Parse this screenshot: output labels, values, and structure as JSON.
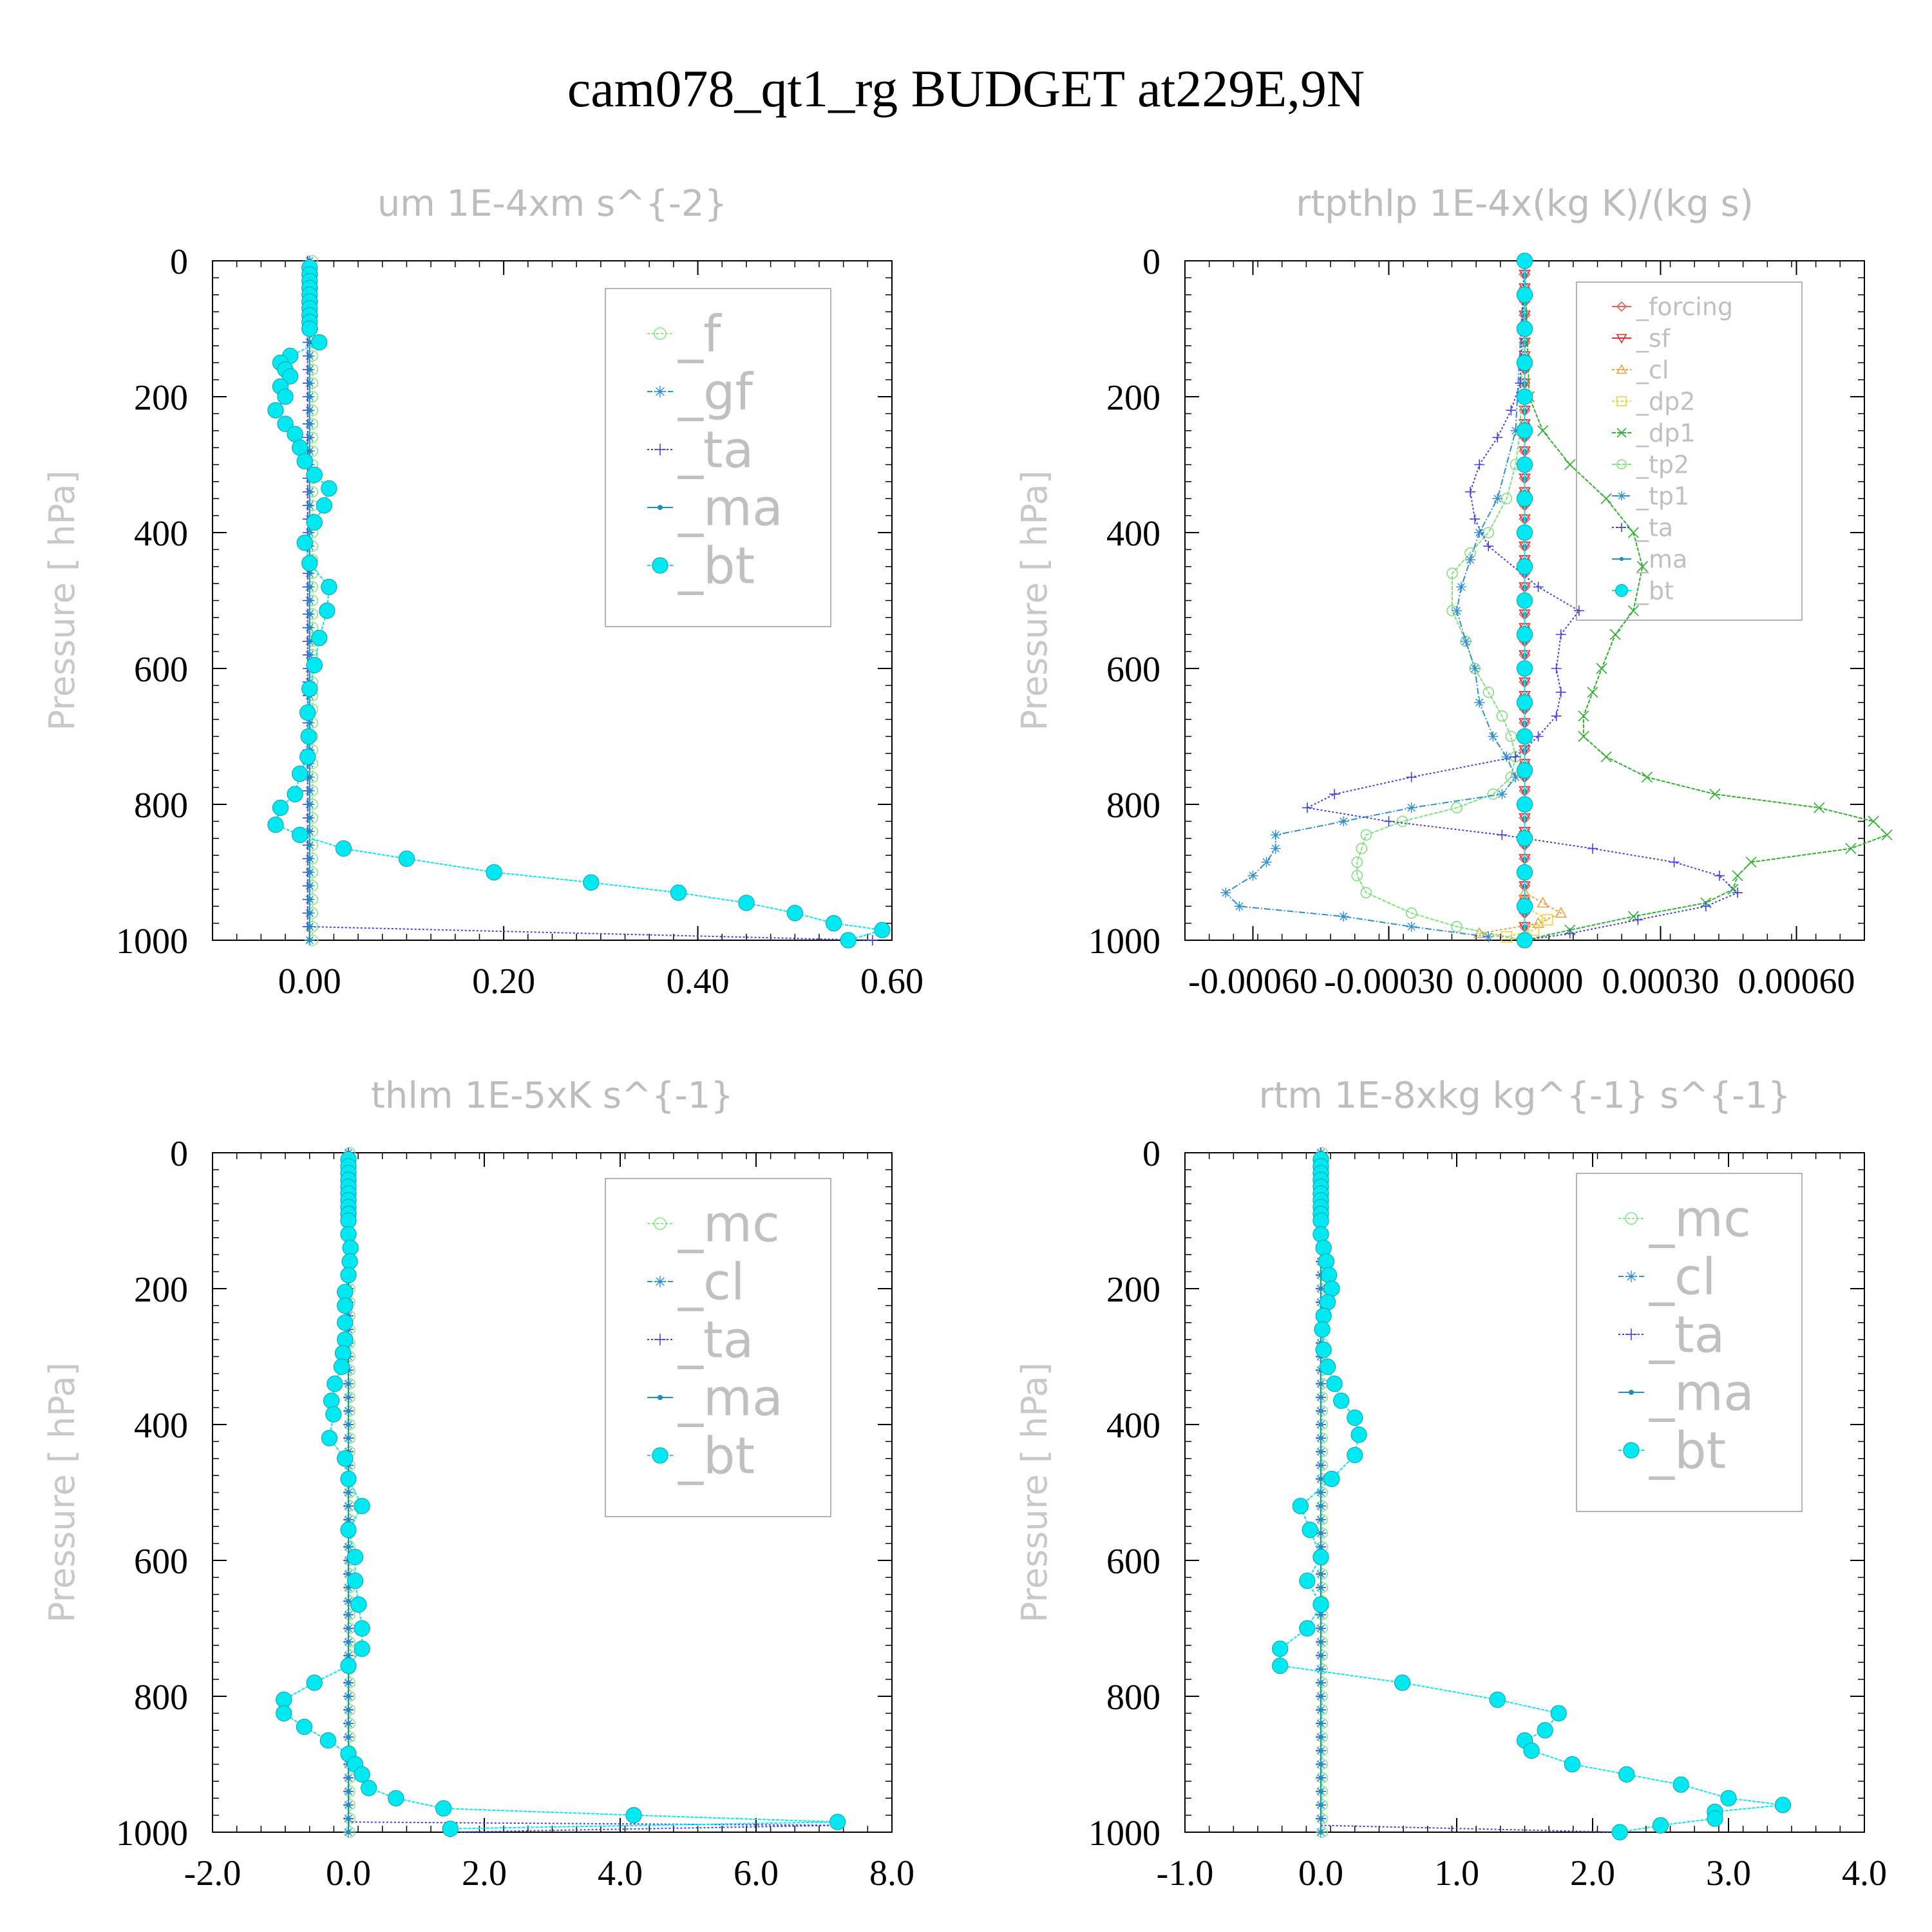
{
  "title": "cam078_qt1_rg  BUDGET at229E,9N",
  "chart_data": [
    {
      "type": "line",
      "title": "um  1E-4xm s^{-2}",
      "ylabel": "Pressure [ hPa]",
      "xlim": [
        -0.1,
        0.6
      ],
      "ylim": [
        1000,
        0
      ],
      "xticks": [
        "0.00",
        "0.20",
        "0.40",
        "0.60"
      ],
      "xtick_values": [
        0,
        0.2,
        0.4,
        0.6
      ],
      "yticks": [
        "0",
        "200",
        "400",
        "600",
        "800",
        "1000"
      ],
      "legend": "top-right",
      "series": [
        {
          "name": "_f",
          "color": "#88e888",
          "marker": "circle",
          "dash": "4 3",
          "p": [
            0,
            1000
          ],
          "x": [
            0.003,
            0.003
          ]
        },
        {
          "name": "_gf",
          "color": "#2f8fd0",
          "marker": "star",
          "dash": "8 3 2 3",
          "p": [
            0,
            1000
          ],
          "x": [
            0.0,
            0.0
          ]
        },
        {
          "name": "_ta",
          "color": "#4040e0",
          "marker": "plus",
          "dash": "3 3",
          "p": [
            0,
            980,
            1000
          ],
          "x": [
            -0.002,
            -0.002,
            0.58
          ]
        },
        {
          "name": "_ma",
          "color": "#1e90c0",
          "marker": "dot",
          "dash": "",
          "p": [
            0,
            1000
          ],
          "x": [
            0.0,
            0.0
          ]
        },
        {
          "name": "_bt",
          "color": "#00e8f0",
          "marker": "bigdot",
          "dash": "5 2",
          "p": [
            10,
            20,
            30,
            40,
            50,
            60,
            70,
            80,
            90,
            100,
            120,
            140,
            150,
            160,
            170,
            185,
            200,
            220,
            240,
            255,
            275,
            295,
            315,
            335,
            360,
            385,
            415,
            445,
            480,
            515,
            555,
            595,
            630,
            665,
            700,
            730,
            755,
            785,
            805,
            830,
            845,
            865,
            880,
            900,
            915,
            930,
            945,
            960,
            975,
            985,
            1000
          ],
          "x": [
            0,
            0,
            0,
            0,
            0,
            0,
            0,
            0,
            0,
            0,
            0.01,
            -0.02,
            -0.03,
            -0.025,
            -0.02,
            -0.03,
            -0.025,
            -0.035,
            -0.025,
            -0.015,
            -0.01,
            -0.005,
            0.005,
            0.02,
            0.015,
            0.005,
            -0.005,
            0,
            0.02,
            0.018,
            0.01,
            0.005,
            0,
            -0.002,
            -0.001,
            -0.002,
            -0.01,
            -0.015,
            -0.03,
            -0.035,
            -0.01,
            0.035,
            0.1,
            0.19,
            0.29,
            0.38,
            0.45,
            0.5,
            0.54,
            0.59,
            0.555
          ]
        }
      ]
    },
    {
      "type": "line",
      "title": "rtpthlp  1E-4x(kg K)/(kg s)",
      "ylabel": "Pressure [ hPa]",
      "xlim": [
        -0.00075,
        0.00075
      ],
      "ylim": [
        1000,
        0
      ],
      "xticks": [
        "-0.00060",
        "-0.00030",
        "0.00000",
        "0.00030",
        "0.00060"
      ],
      "xtick_values": [
        -0.0006,
        -0.0003,
        0,
        0.0003,
        0.0006
      ],
      "yticks": [
        "0",
        "200",
        "400",
        "600",
        "800",
        "1000"
      ],
      "legend": "top-right",
      "series": [
        {
          "name": "_forcing",
          "color": "#e06060",
          "marker": "diamond",
          "dash": "",
          "p": [
            0,
            1000
          ],
          "x": [
            0,
            0
          ]
        },
        {
          "name": "_sf",
          "color": "#e03030",
          "marker": "tridown",
          "dash": "",
          "p": [
            0,
            1000
          ],
          "x": [
            0,
            0
          ]
        },
        {
          "name": "_cl",
          "color": "#f0a040",
          "marker": "triup",
          "dash": "4 3",
          "p": [
            0,
            930,
            945,
            960,
            975,
            990,
            1000
          ],
          "x": [
            0,
            0,
            4e-05,
            8e-05,
            3e-05,
            -0.0001,
            0
          ]
        },
        {
          "name": "_dp2",
          "color": "#f0d040",
          "marker": "square",
          "dash": "4 3",
          "p": [
            0,
            950,
            970,
            985,
            995,
            1000
          ],
          "x": [
            0,
            0,
            5e-05,
            2e-05,
            -4e-05,
            0
          ]
        },
        {
          "name": "_dp1",
          "color": "#30b030",
          "marker": "cross",
          "dash": "6 2",
          "p": [
            0,
            200,
            250,
            300,
            350,
            400,
            450,
            515,
            550,
            600,
            635,
            670,
            700,
            730,
            760,
            785,
            805,
            825,
            845,
            865,
            885,
            905,
            925,
            945,
            965,
            985,
            1000
          ],
          "x": [
            0,
            1e-05,
            4e-05,
            0.0001,
            0.00018,
            0.00024,
            0.00026,
            0.00024,
            0.0002,
            0.00017,
            0.00015,
            0.00013,
            0.00013,
            0.00018,
            0.00027,
            0.00042,
            0.00065,
            0.00077,
            0.0008,
            0.00072,
            0.0005,
            0.00047,
            0.00046,
            0.0004,
            0.00024,
            0.0001,
            0
          ]
        },
        {
          "name": "_tp2",
          "color": "#80e080",
          "marker": "circle",
          "dash": "6 2",
          "p": [
            0,
            250,
            300,
            350,
            400,
            430,
            460,
            515,
            560,
            600,
            635,
            670,
            700,
            730,
            760,
            785,
            805,
            825,
            845,
            865,
            885,
            905,
            930,
            960,
            980,
            1000
          ],
          "x": [
            0,
            -1e-05,
            -2e-05,
            -4e-05,
            -8e-05,
            -0.00012,
            -0.00016,
            -0.00016,
            -0.00013,
            -0.00011,
            -8e-05,
            -5e-05,
            -3e-05,
            -2e-05,
            -3e-05,
            -7e-05,
            -0.00015,
            -0.00027,
            -0.00035,
            -0.00036,
            -0.00037,
            -0.00037,
            -0.00035,
            -0.00025,
            -0.00015,
            0
          ]
        },
        {
          "name": "_tp1",
          "color": "#2f8fd0",
          "marker": "star",
          "dash": "10 3 2 3",
          "p": [
            0,
            250,
            350,
            400,
            440,
            480,
            515,
            560,
            600,
            650,
            700,
            730,
            760,
            785,
            805,
            825,
            845,
            865,
            885,
            905,
            930,
            950,
            965,
            980,
            995
          ],
          "x": [
            0,
            -2e-05,
            -6e-05,
            -0.0001,
            -0.00012,
            -0.00014,
            -0.00015,
            -0.00013,
            -0.00011,
            -0.0001,
            -7e-05,
            -4e-05,
            -2e-05,
            -5e-05,
            -0.00025,
            -0.0004,
            -0.00055,
            -0.00055,
            -0.00057,
            -0.0006,
            -0.00066,
            -0.00063,
            -0.0004,
            -0.00025,
            -8e-05
          ]
        },
        {
          "name": "_ta",
          "color": "#4040e0",
          "marker": "plus",
          "dash": "3 3",
          "p": [
            0,
            180,
            220,
            260,
            300,
            340,
            380,
            420,
            480,
            515,
            550,
            600,
            635,
            670,
            700,
            730,
            760,
            785,
            805,
            825,
            845,
            865,
            885,
            905,
            930,
            950,
            970,
            990,
            1000
          ],
          "x": [
            0,
            -1e-05,
            -3e-05,
            -6e-05,
            -0.0001,
            -0.00012,
            -0.00011,
            -8e-05,
            3e-05,
            0.00012,
            8e-05,
            7e-05,
            8e-05,
            7e-05,
            3e-05,
            -2e-05,
            -0.00025,
            -0.00042,
            -0.00048,
            -0.0003,
            -5e-05,
            0.00015,
            0.00033,
            0.00043,
            0.00047,
            0.0004,
            0.00025,
            0.0001,
            0
          ]
        },
        {
          "name": "_ma",
          "color": "#1e90c0",
          "marker": "dot",
          "dash": "",
          "p": [
            0,
            1000
          ],
          "x": [
            0,
            0
          ]
        },
        {
          "name": "_bt",
          "color": "#00e8f0",
          "marker": "bigdot",
          "dash": "",
          "p": [
            0,
            50,
            100,
            150,
            200,
            250,
            300,
            350,
            400,
            450,
            500,
            550,
            600,
            650,
            700,
            750,
            800,
            850,
            900,
            950,
            1000
          ],
          "x": [
            0,
            0,
            0,
            0,
            0,
            0,
            0,
            0,
            0,
            0,
            0,
            0,
            0,
            0,
            0,
            0,
            0,
            0,
            0,
            0,
            0
          ]
        }
      ]
    },
    {
      "type": "line",
      "title": "thlm  1E-5xK s^{-1}",
      "ylabel": "Pressure [ hPa]",
      "xlim": [
        -2,
        8
      ],
      "ylim": [
        1000,
        0
      ],
      "xticks": [
        "-2.0",
        "0.0",
        "2.0",
        "4.0",
        "6.0",
        "8.0"
      ],
      "xtick_values": [
        -2,
        0,
        2,
        4,
        6,
        8
      ],
      "yticks": [
        "0",
        "200",
        "400",
        "600",
        "800",
        "1000"
      ],
      "legend": "top-right",
      "series": [
        {
          "name": "_mc",
          "color": "#88e888",
          "marker": "circle",
          "dash": "4 3",
          "p": [
            0,
            1000
          ],
          "x": [
            0.02,
            0.02
          ]
        },
        {
          "name": "_cl",
          "color": "#2f8fd0",
          "marker": "star",
          "dash": "8 3 2 3",
          "p": [
            0,
            1000
          ],
          "x": [
            0,
            0
          ]
        },
        {
          "name": "_ta",
          "color": "#4040e0",
          "marker": "plus",
          "dash": "3 3",
          "p": [
            0,
            985,
            990,
            1000
          ],
          "x": [
            0,
            0,
            7.2,
            1.5
          ]
        },
        {
          "name": "_ma",
          "color": "#1e90c0",
          "marker": "dot",
          "dash": "",
          "p": [
            0,
            1000
          ],
          "x": [
            0,
            0
          ]
        },
        {
          "name": "_bt",
          "color": "#00e8f0",
          "marker": "bigdot",
          "dash": "5 2",
          "p": [
            10,
            20,
            30,
            40,
            50,
            60,
            70,
            80,
            90,
            100,
            120,
            140,
            160,
            180,
            205,
            225,
            250,
            275,
            295,
            315,
            340,
            365,
            385,
            420,
            450,
            480,
            520,
            555,
            595,
            630,
            665,
            700,
            730,
            755,
            780,
            805,
            825,
            845,
            865,
            885,
            900,
            915,
            935,
            950,
            965,
            975,
            985,
            995
          ],
          "x": [
            0,
            0,
            0,
            0,
            0,
            0,
            0,
            0,
            0,
            0,
            0,
            0.03,
            0.02,
            0,
            -0.05,
            -0.05,
            -0.05,
            -0.05,
            -0.08,
            -0.1,
            -0.2,
            -0.25,
            -0.22,
            -0.28,
            -0.05,
            0,
            0.2,
            0,
            0.1,
            0.1,
            0.15,
            0.2,
            0.2,
            0,
            -0.5,
            -0.95,
            -0.95,
            -0.65,
            -0.3,
            0,
            0.1,
            0.2,
            0.3,
            0.7,
            1.4,
            4.2,
            7.2,
            1.5
          ]
        }
      ]
    },
    {
      "type": "line",
      "title": "rtm  1E-8xkg kg^{-1} s^{-1}",
      "ylabel": "Pressure [ hPa]",
      "xlim": [
        -1,
        4
      ],
      "ylim": [
        1000,
        0
      ],
      "xticks": [
        "-1.0",
        "0.0",
        "1.0",
        "2.0",
        "3.0",
        "4.0"
      ],
      "xtick_values": [
        -1,
        0,
        1,
        2,
        3,
        4
      ],
      "yticks": [
        "0",
        "200",
        "400",
        "600",
        "800",
        "1000"
      ],
      "legend": "top-right",
      "series": [
        {
          "name": "_mc",
          "color": "#88e888",
          "marker": "circle",
          "dash": "4 3",
          "p": [
            0,
            1000
          ],
          "x": [
            0.01,
            0.01
          ]
        },
        {
          "name": "_cl",
          "color": "#2f8fd0",
          "marker": "star",
          "dash": "8 3 2 3",
          "p": [
            0,
            1000
          ],
          "x": [
            0,
            0
          ]
        },
        {
          "name": "_ta",
          "color": "#4040e0",
          "marker": "plus",
          "dash": "3 3",
          "p": [
            0,
            990,
            1000
          ],
          "x": [
            0,
            0,
            2.2
          ]
        },
        {
          "name": "_ma",
          "color": "#1e90c0",
          "marker": "dot",
          "dash": "",
          "p": [
            0,
            1000
          ],
          "x": [
            0,
            0
          ]
        },
        {
          "name": "_bt",
          "color": "#00e8f0",
          "marker": "bigdot",
          "dash": "5 2",
          "p": [
            10,
            20,
            30,
            40,
            50,
            60,
            70,
            80,
            90,
            100,
            120,
            140,
            160,
            180,
            200,
            220,
            240,
            260,
            290,
            315,
            340,
            365,
            390,
            415,
            445,
            480,
            520,
            555,
            595,
            630,
            665,
            700,
            730,
            755,
            780,
            805,
            825,
            850,
            865,
            880,
            900,
            915,
            930,
            950,
            960,
            970,
            980,
            990,
            1000
          ],
          "x": [
            0,
            0,
            0,
            0,
            0,
            0,
            0,
            0,
            0,
            0,
            0,
            0.02,
            0.04,
            0.06,
            0.08,
            0.05,
            0.02,
            0.01,
            0.02,
            0.05,
            0.1,
            0.15,
            0.25,
            0.28,
            0.25,
            0.08,
            -0.15,
            -0.08,
            0,
            -0.1,
            0,
            -0.1,
            -0.3,
            -0.3,
            0.6,
            1.3,
            1.75,
            1.65,
            1.5,
            1.55,
            1.85,
            2.25,
            2.65,
            3.0,
            3.4,
            2.9,
            2.9,
            2.5,
            2.2
          ]
        }
      ]
    }
  ]
}
